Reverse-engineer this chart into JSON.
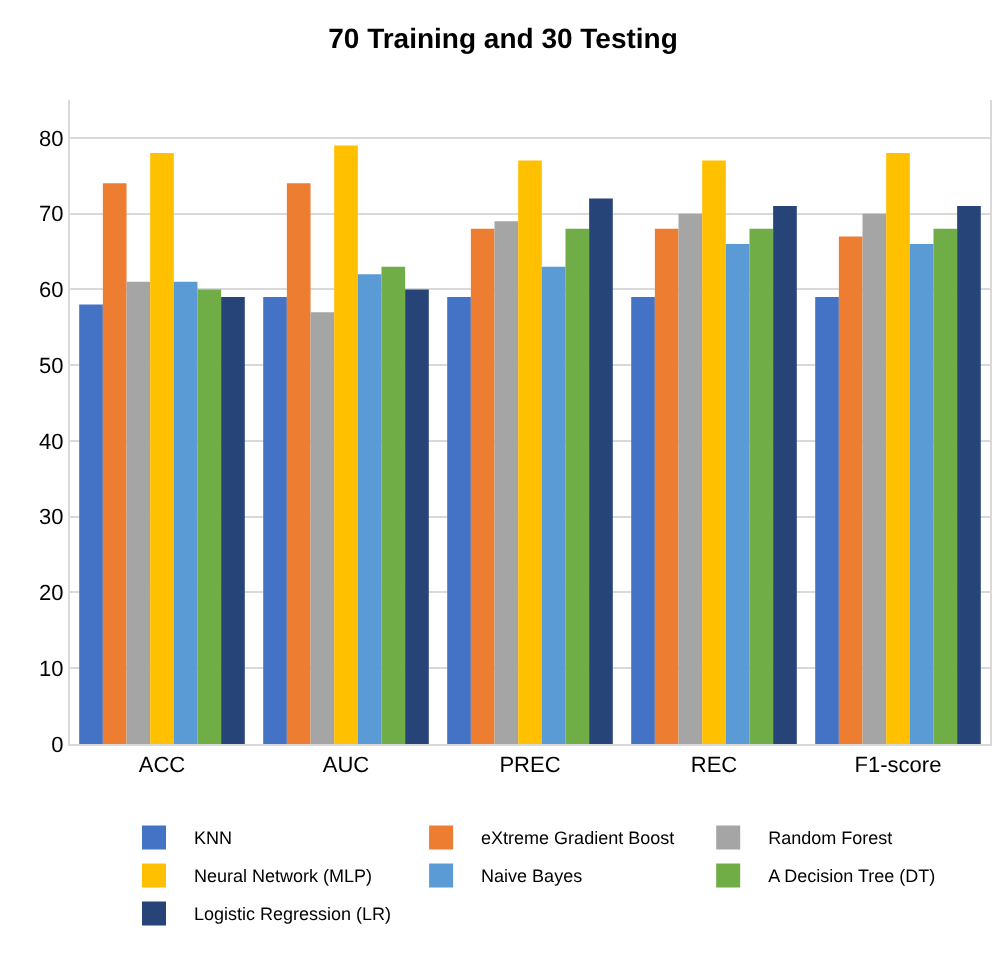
{
  "chart_data": {
    "type": "bar",
    "title": "70 Training and 30 Testing",
    "categories": [
      "ACC",
      "AUC",
      "PREC",
      "REC",
      "F1-score"
    ],
    "series": [
      {
        "name": "KNN",
        "color": "#4472c4",
        "values": [
          58,
          59,
          59,
          59,
          59
        ]
      },
      {
        "name": "eXtreme Gradient Boost",
        "color": "#ed7d31",
        "values": [
          74,
          74,
          68,
          68,
          67
        ]
      },
      {
        "name": "Random Forest",
        "color": "#a5a5a5",
        "values": [
          61,
          57,
          69,
          70,
          70
        ]
      },
      {
        "name": "Neural Network (MLP)",
        "color": "#ffc000",
        "values": [
          78,
          79,
          77,
          77,
          78
        ]
      },
      {
        "name": "Naive Bayes",
        "color": "#5b9bd5",
        "values": [
          61,
          62,
          63,
          66,
          66
        ]
      },
      {
        "name": "A Decision Tree (DT)",
        "color": "#70ad47",
        "values": [
          60,
          63,
          68,
          68,
          68
        ]
      },
      {
        "name": "Logistic Regression (LR)",
        "color": "#264478",
        "values": [
          59,
          60,
          72,
          71,
          71
        ]
      }
    ],
    "ylim": [
      0,
      85
    ],
    "yticks": [
      0,
      10,
      20,
      30,
      40,
      50,
      60,
      70,
      80
    ],
    "grid": "y",
    "legend": "bottom"
  }
}
